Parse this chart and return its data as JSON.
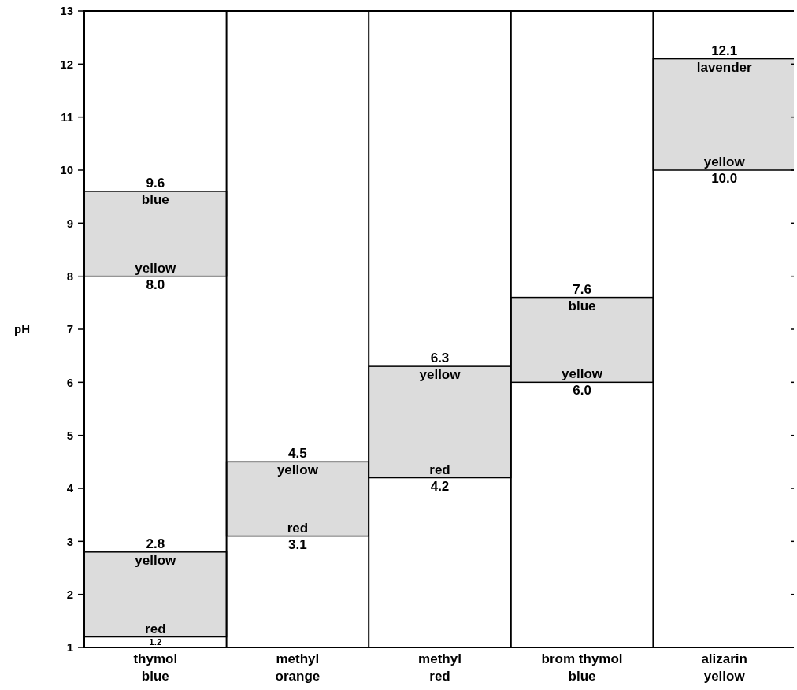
{
  "chart_data": {
    "type": "bar",
    "ylabel": "pH",
    "categories": [
      "thymol blue",
      "methyl orange",
      "methyl red",
      "brom thymol blue",
      "alizarin yellow"
    ],
    "series": [
      {
        "color": "#dcdcdc",
        "base": [
          1.2,
          3.1,
          4.2,
          6.0,
          10.0
        ],
        "values": [
          1.6,
          1.4,
          2.1,
          1.6,
          2.1
        ]
      },
      {
        "color": "#dcdcdc",
        "base": [
          8.0,
          null,
          null,
          null,
          null
        ],
        "values": [
          1.6,
          null,
          null,
          null,
          null
        ]
      }
    ],
    "ylim": [
      1,
      13
    ],
    "yticks": [
      1,
      2,
      3,
      4,
      5,
      6,
      7,
      8,
      9,
      10,
      11,
      12,
      13
    ],
    "grid": false,
    "annotations": [
      {
        "text": "9.6",
        "x": "thymol blue",
        "y": 9.6
      },
      {
        "text": "blue",
        "x": "thymol blue",
        "y": 9.6
      },
      {
        "text": "yellow",
        "x": "thymol blue",
        "y": 8.0
      },
      {
        "text": "8.0",
        "x": "thymol blue",
        "y": 8.0
      },
      {
        "text": "2.8",
        "x": "thymol blue",
        "y": 2.8
      },
      {
        "text": "yellow",
        "x": "thymol blue",
        "y": 2.8
      },
      {
        "text": "red",
        "x": "thymol blue",
        "y": 1.2
      },
      {
        "text": "1.2",
        "x": "thymol blue",
        "y": 1.2
      },
      {
        "text": "4.5",
        "x": "methyl orange",
        "y": 4.5
      },
      {
        "text": "yellow",
        "x": "methyl orange",
        "y": 4.5
      },
      {
        "text": "red",
        "x": "methyl orange",
        "y": 3.1
      },
      {
        "text": "3.1",
        "x": "methyl orange",
        "y": 3.1
      },
      {
        "text": "6.3",
        "x": "methyl red",
        "y": 6.3
      },
      {
        "text": "yellow",
        "x": "methyl red",
        "y": 6.3
      },
      {
        "text": "red",
        "x": "methyl red",
        "y": 4.2
      },
      {
        "text": "4.2",
        "x": "methyl red",
        "y": 4.2
      },
      {
        "text": "7.6",
        "x": "brom thymol blue",
        "y": 7.6
      },
      {
        "text": "blue",
        "x": "brom thymol blue",
        "y": 7.6
      },
      {
        "text": "yellow",
        "x": "brom thymol blue",
        "y": 6.0
      },
      {
        "text": "6.0",
        "x": "brom thymol blue",
        "y": 6.0
      },
      {
        "text": "12.1",
        "x": "alizarin yellow",
        "y": 12.1
      },
      {
        "text": "lavender",
        "x": "alizarin yellow",
        "y": 12.1
      },
      {
        "text": "yellow",
        "x": "alizarin yellow",
        "y": 10.0
      },
      {
        "text": "10.0",
        "x": "alizarin yellow",
        "y": 10.0
      }
    ]
  }
}
